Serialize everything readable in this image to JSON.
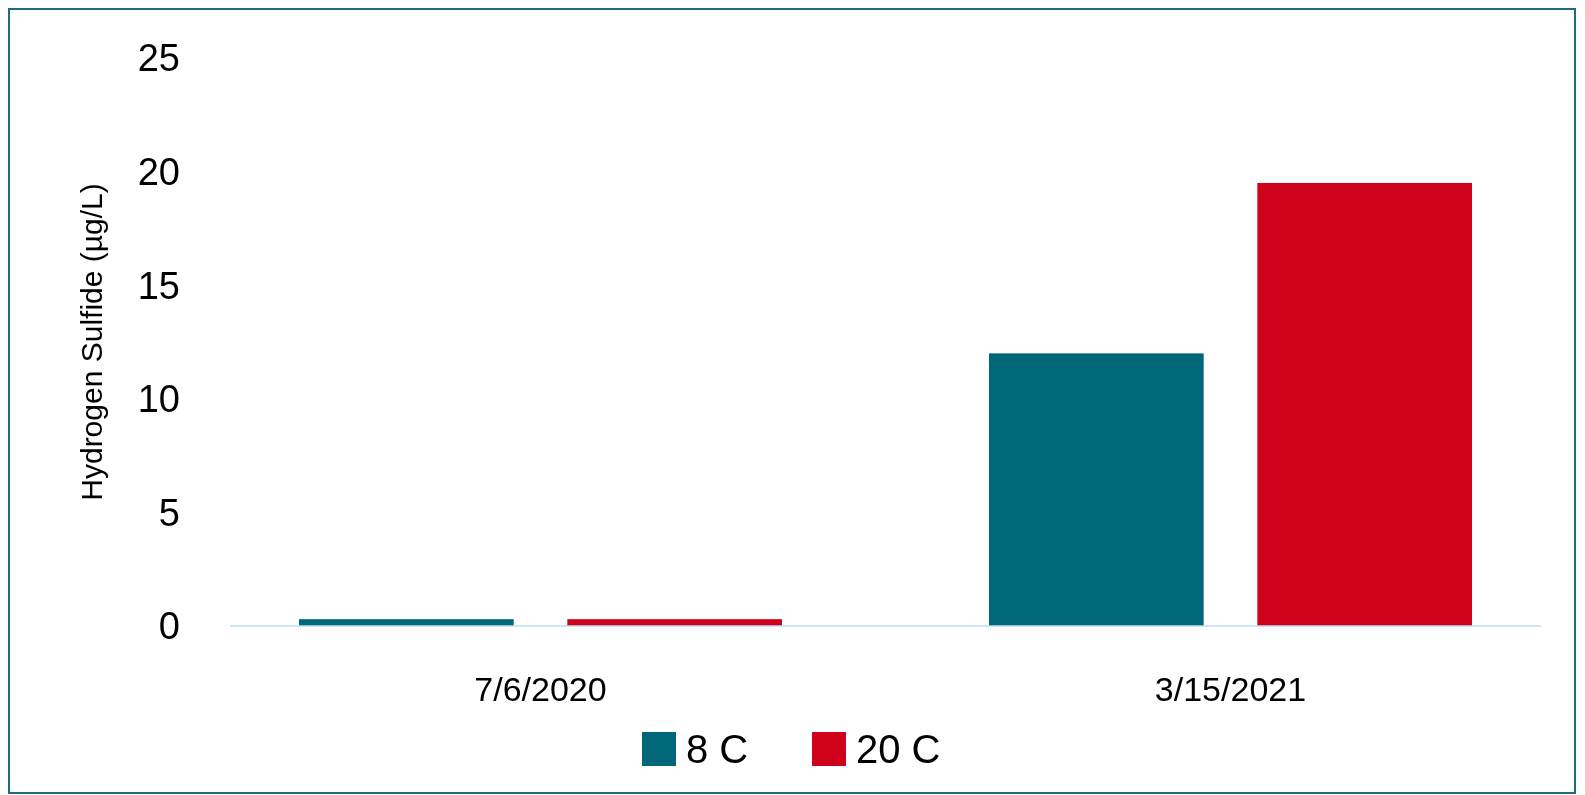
{
  "chart_data": {
    "type": "bar",
    "ylabel": "Hydrogen Sulfide (µg/L)",
    "categories": [
      "7/6/2020",
      "3/15/2021"
    ],
    "series": [
      {
        "name": "8 C",
        "color": "#006778",
        "values": [
          0.3,
          12.0
        ]
      },
      {
        "name": "20 C",
        "color": "#d0021b",
        "values": [
          0.3,
          19.5
        ]
      }
    ],
    "ylim": [
      0,
      25
    ],
    "yticks": [
      0,
      5,
      10,
      15,
      20,
      25
    ],
    "grid": false,
    "legend": "bottom"
  }
}
